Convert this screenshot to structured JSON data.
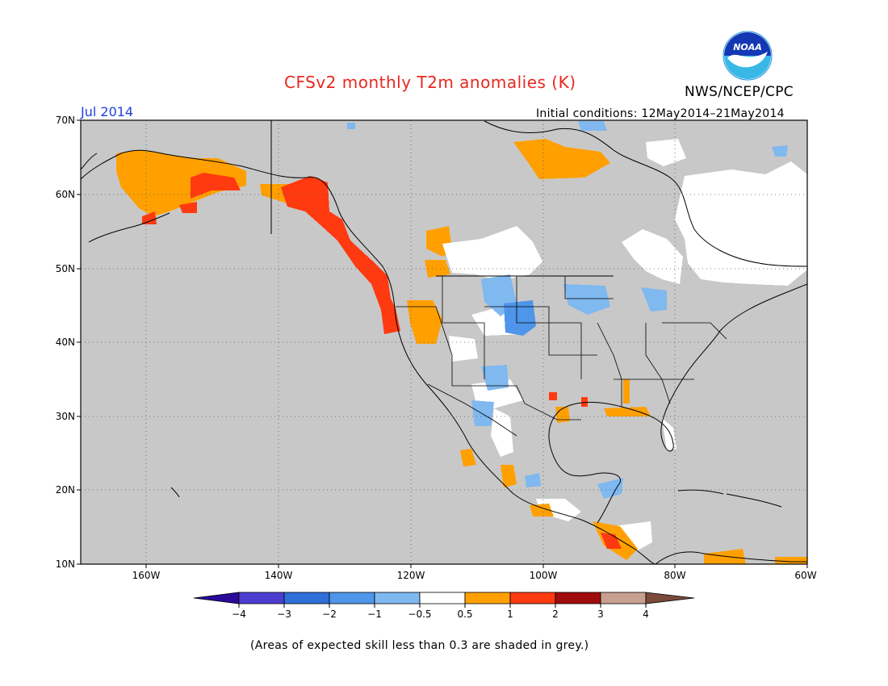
{
  "header": {
    "title": "CFSv2 monthly T2m anomalies (K)",
    "agency": "NWS/NCEP/CPC",
    "logo_text": "NOAA",
    "month": "Jul 2014",
    "initial_conditions": "Initial conditions: 12May2014–21May2014"
  },
  "map": {
    "lat_labels": [
      "70N",
      "60N",
      "50N",
      "40N",
      "30N",
      "20N",
      "10N"
    ],
    "lon_labels": [
      "160W",
      "140W",
      "120W",
      "100W",
      "80W",
      "60W"
    ],
    "extent": {
      "lon_min": -172,
      "lon_max": -60,
      "lat_min": 10,
      "lat_max": 70
    },
    "background_color": "#c8c8c8"
  },
  "legend": {
    "tick_labels": [
      "−4",
      "−3",
      "−2",
      "−1",
      "−0.5",
      "0.5",
      "1",
      "2",
      "3",
      "4"
    ],
    "colors": [
      "#2a0a9a",
      "#4c3fd0",
      "#2f6fd8",
      "#4f95ea",
      "#80b8f0",
      "#ffffff",
      "#ffa000",
      "#ff3a10",
      "#a00c0c",
      "#c8a090",
      "#7a4a3a"
    ]
  },
  "footnote": "(Areas of expected skill less than 0.3 are shaded in grey.)"
}
